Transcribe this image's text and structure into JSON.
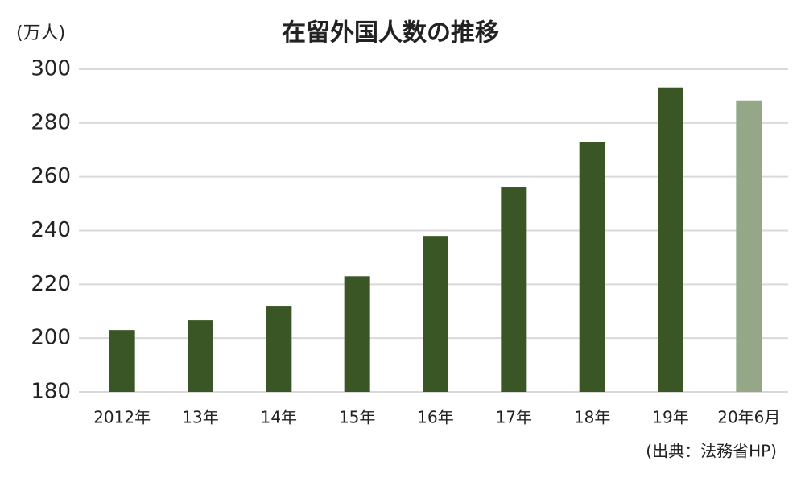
{
  "chart_data": {
    "type": "bar",
    "title": "在留外国人数の推移",
    "y_unit": "(万人)",
    "source": "(出典：法務省HP)",
    "categories": [
      "2012年",
      "13年",
      "14年",
      "15年",
      "16年",
      "17年",
      "18年",
      "19年",
      "20年6月"
    ],
    "values": [
      203,
      206.6,
      212,
      223,
      238,
      256,
      272.8,
      293.2,
      288.4
    ],
    "colors": [
      "#3a5624",
      "#3a5624",
      "#3a5624",
      "#3a5624",
      "#3a5624",
      "#3a5624",
      "#3a5624",
      "#3a5624",
      "#94a888"
    ],
    "ylim": [
      180,
      300
    ],
    "yticks": [
      180,
      200,
      220,
      240,
      260,
      280,
      300
    ],
    "grid": true
  }
}
